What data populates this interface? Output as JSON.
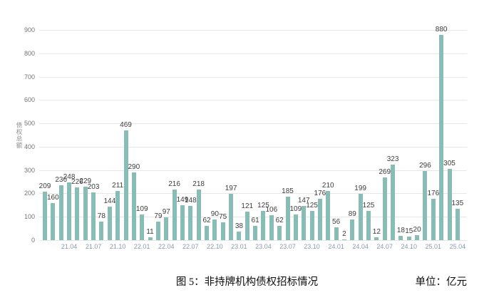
{
  "chart_data": {
    "type": "bar",
    "title": "图 5：非持牌机构债权招标情况",
    "unit_label": "单位：亿元",
    "ylabel": "债权总额",
    "ylim": [
      0,
      900
    ],
    "ytick_step": 100,
    "grid": true,
    "legend_position": "none",
    "bar_color": "#87bdb5",
    "value_label_color": "#3d3d3d",
    "ytick_color": "#737373",
    "xtick_color": "#8a99b0",
    "xtick_labels": [
      "21.04",
      "21.07",
      "21.10",
      "22.01",
      "22.04",
      "22.07",
      "22.10",
      "23.01",
      "23.04",
      "23.07",
      "23.10",
      "24.01",
      "24.04",
      "24.07",
      "24.10",
      "25.01",
      "25.04"
    ],
    "xtick_start_index": 3,
    "xtick_every": 3,
    "values": [
      209,
      160,
      236,
      248,
      226,
      229,
      203,
      78,
      144,
      211,
      469,
      290,
      109,
      11,
      79,
      97,
      216,
      149,
      148,
      218,
      62,
      90,
      75,
      197,
      38,
      121,
      61,
      125,
      106,
      62,
      185,
      109,
      147,
      125,
      176,
      210,
      56,
      2,
      89,
      199,
      125,
      12,
      269,
      323,
      18,
      15,
      20,
      296,
      176,
      880,
      305,
      135
    ]
  }
}
